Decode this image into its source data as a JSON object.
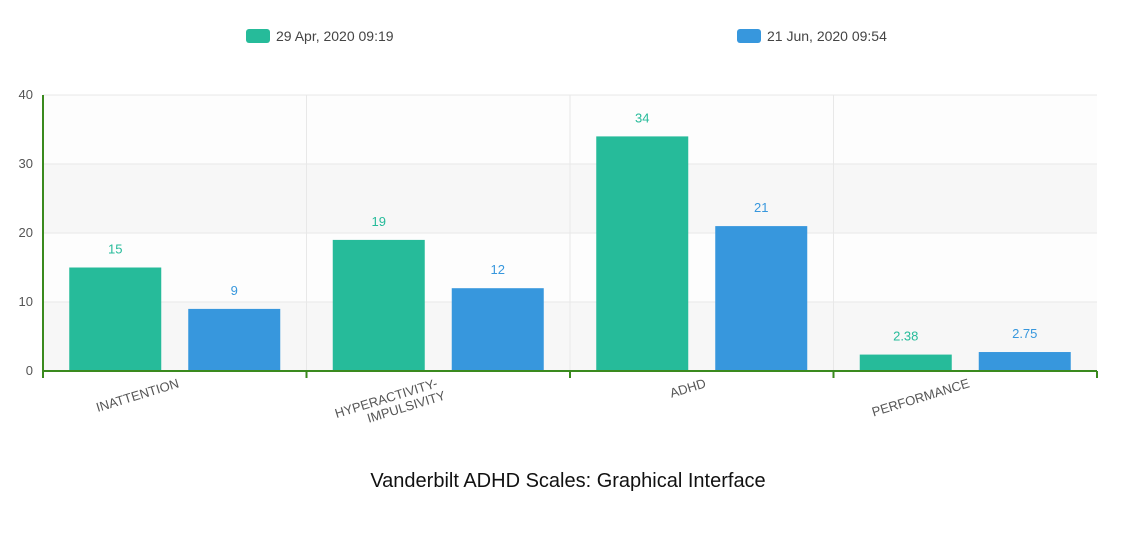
{
  "caption": "Vanderbilt ADHD Scales: Graphical Interface",
  "chart_data": {
    "type": "bar",
    "categories": [
      [
        "INATTENTION"
      ],
      [
        "HYPERACTIVITY-",
        "IMPULSIVITY"
      ],
      [
        "ADHD"
      ],
      [
        "PERFORMANCE"
      ]
    ],
    "series": [
      {
        "name": "29 Apr, 2020 09:19",
        "color": "#26bb9a",
        "values": [
          15,
          19,
          34,
          2.38
        ]
      },
      {
        "name": "21 Jun, 2020 09:54",
        "color": "#3797dd",
        "values": [
          9,
          12,
          21,
          2.75
        ]
      }
    ],
    "ylim": [
      0,
      40
    ],
    "yticks": [
      0,
      10,
      20,
      30,
      40
    ],
    "grid": true,
    "legend_position": "top",
    "axis_color": "#3a8a1e"
  }
}
